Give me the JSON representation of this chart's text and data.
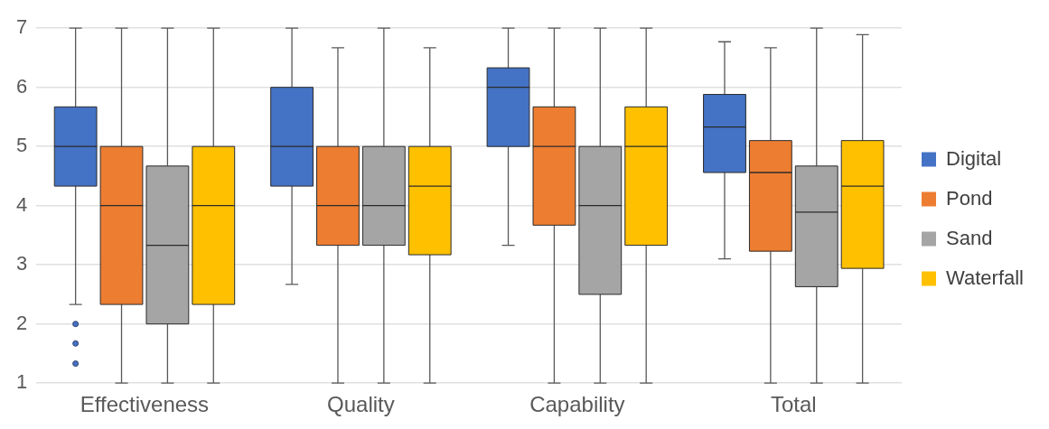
{
  "chart_data": {
    "type": "box",
    "categories": [
      "Effectiveness",
      "Quality",
      "Capability",
      "Total"
    ],
    "ylim": [
      1,
      7
    ],
    "yticks": [
      1,
      2,
      3,
      4,
      5,
      6,
      7
    ],
    "grid": "y",
    "legend": "right",
    "series": [
      {
        "name": "Digital",
        "color": "#4472c4",
        "boxes": [
          {
            "low": 2.33,
            "q1": 4.33,
            "median": 5,
            "q3": 5.67,
            "high": 7,
            "outliers": [
              2,
              1.67,
              1.33
            ]
          },
          {
            "low": 2.67,
            "q1": 4.33,
            "median": 5,
            "q3": 6,
            "high": 7
          },
          {
            "low": 3.33,
            "q1": 5,
            "median": 6,
            "q3": 6.33,
            "high": 7
          },
          {
            "low": 3.1,
            "q1": 4.56,
            "median": 5.33,
            "q3": 5.88,
            "high": 6.77
          }
        ]
      },
      {
        "name": "Pond",
        "color": "#ed7d31",
        "boxes": [
          {
            "low": 1,
            "q1": 2.33,
            "median": 4,
            "q3": 5,
            "high": 7
          },
          {
            "low": 1,
            "q1": 3.33,
            "median": 4,
            "q3": 5,
            "high": 6.67
          },
          {
            "low": 1,
            "q1": 3.67,
            "median": 5,
            "q3": 5.67,
            "high": 7
          },
          {
            "low": 1,
            "q1": 3.23,
            "median": 4.56,
            "q3": 5.1,
            "high": 6.67
          }
        ]
      },
      {
        "name": "Sand",
        "color": "#a5a5a5",
        "boxes": [
          {
            "low": 1,
            "q1": 2,
            "median": 3.33,
            "q3": 4.67,
            "high": 7
          },
          {
            "low": 1,
            "q1": 3.33,
            "median": 4,
            "q3": 5,
            "high": 7
          },
          {
            "low": 1,
            "q1": 2.5,
            "median": 4,
            "q3": 5,
            "high": 7
          },
          {
            "low": 1,
            "q1": 2.63,
            "median": 3.89,
            "q3": 4.67,
            "high": 7
          }
        ]
      },
      {
        "name": "Waterfall",
        "color": "#ffc000",
        "boxes": [
          {
            "low": 1,
            "q1": 2.33,
            "median": 4,
            "q3": 5,
            "high": 7
          },
          {
            "low": 1,
            "q1": 3.17,
            "median": 4.33,
            "q3": 5,
            "high": 6.67
          },
          {
            "low": 1,
            "q1": 3.33,
            "median": 5,
            "q3": 5.67,
            "high": 7
          },
          {
            "low": 1,
            "q1": 2.94,
            "median": 4.33,
            "q3": 5.1,
            "high": 6.89
          }
        ]
      }
    ]
  }
}
